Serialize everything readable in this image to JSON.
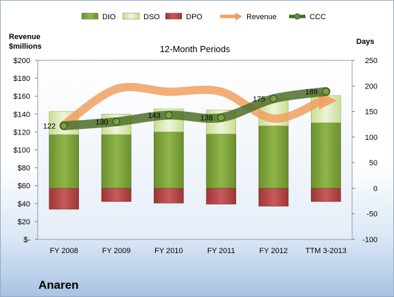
{
  "company": "Anaren",
  "chart_data": {
    "type": "bar",
    "title": "12-Month Periods",
    "left_axis_label": [
      "Revenue",
      "$millions"
    ],
    "right_axis_label": "Days",
    "categories": [
      "FY 2008",
      "FY 2009",
      "FY 2010",
      "FY 2011",
      "FY 2012",
      "TTM 3-2013"
    ],
    "left_ticks": [
      "$-",
      "$20",
      "$40",
      "$60",
      "$80",
      "$100",
      "$120",
      "$140",
      "$160",
      "$180",
      "$200"
    ],
    "right_ticks": [
      "-100",
      "-50",
      "0",
      "50",
      "100",
      "150",
      "200",
      "250"
    ],
    "ylim_left": [
      0,
      200
    ],
    "ylim_right": [
      -100,
      250
    ],
    "legend": [
      {
        "name": "DIO",
        "color": "#7a9e3a",
        "kind": "bar"
      },
      {
        "name": "DSO",
        "color": "#dbe9b6",
        "kind": "bar"
      },
      {
        "name": "DPO",
        "color": "#b84a4a",
        "kind": "bar"
      },
      {
        "name": "Revenue",
        "color": "#f0a060",
        "kind": "arrow"
      },
      {
        "name": "CCC",
        "color": "#4a6a2a",
        "kind": "line"
      }
    ],
    "series": [
      {
        "name": "DIO",
        "unit": "days",
        "values": [
          105,
          105,
          110,
          106,
          122,
          128
        ]
      },
      {
        "name": "DSO",
        "unit": "days",
        "values": [
          45,
          40,
          45,
          47,
          53,
          53
        ]
      },
      {
        "name": "DPO",
        "unit": "days",
        "values": [
          -41,
          -26,
          -29,
          -31,
          -35,
          -26
        ]
      },
      {
        "name": "Revenue",
        "unit": "$millions",
        "values": [
          128,
          168,
          165,
          165,
          135,
          155
        ]
      },
      {
        "name": "CCC",
        "unit": "days",
        "values": [
          122,
          130,
          143,
          138,
          175,
          189
        ]
      }
    ],
    "ccc_labels": [
      "122",
      "130",
      "143",
      "138",
      "175",
      "189"
    ],
    "grid": false,
    "legend_position": "top"
  }
}
